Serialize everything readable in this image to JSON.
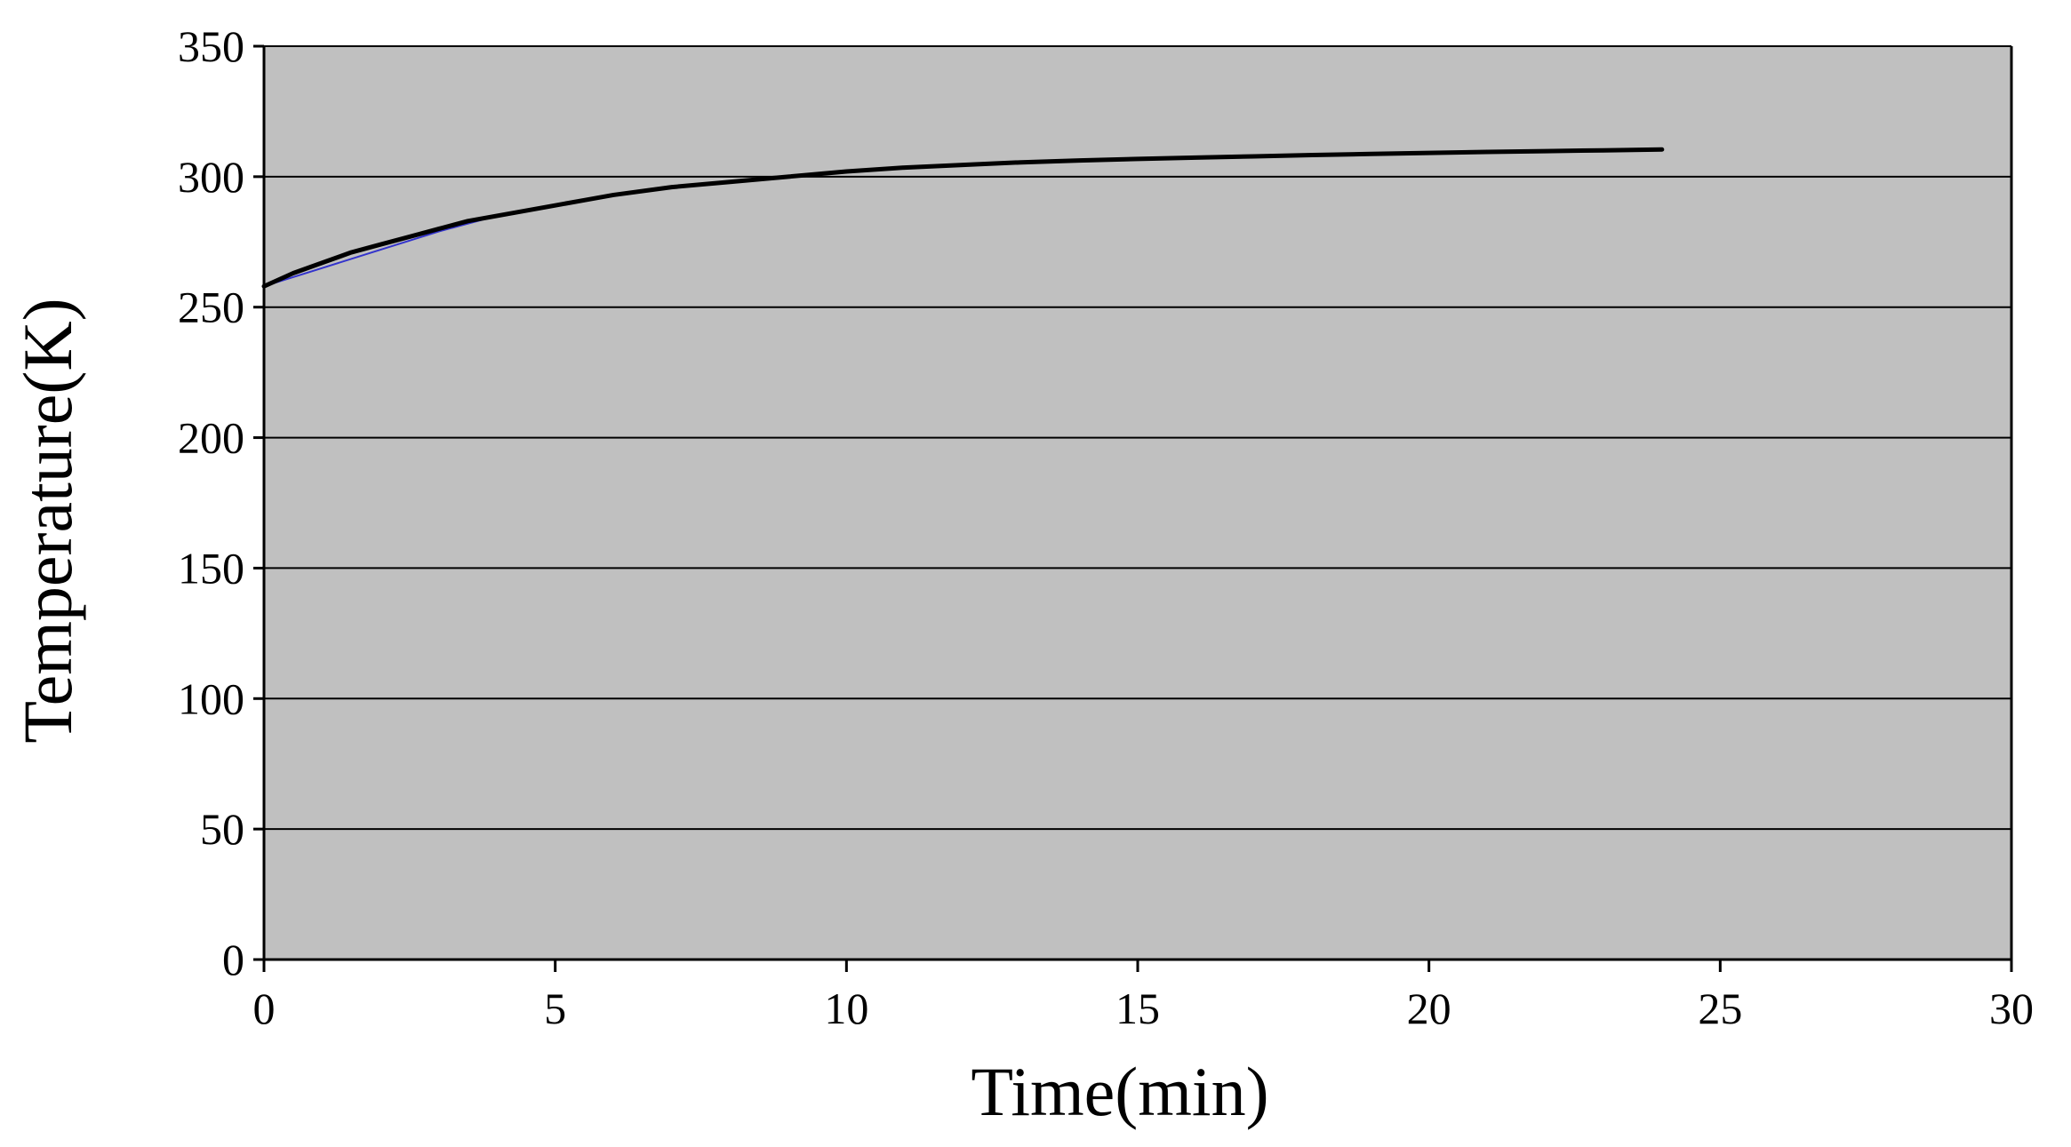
{
  "colors": {
    "plot_background": "#c0c0c0",
    "page_background": "#ffffff",
    "gridline": "#000000",
    "series_main": "#000000",
    "series_secondary": "#3333cc"
  },
  "chart_data": {
    "type": "line",
    "title": "",
    "xlabel": "Time(min)",
    "ylabel": "Temperature(K)",
    "xlim": [
      0,
      30
    ],
    "ylim": [
      0,
      350
    ],
    "xticks": [
      0,
      5,
      10,
      15,
      20,
      25,
      30
    ],
    "yticks": [
      0,
      50,
      100,
      150,
      200,
      250,
      300,
      350
    ],
    "grid": "horizontal",
    "legend": "none",
    "series": [
      {
        "color": "#000000",
        "x": [
          0,
          0.5,
          1,
          1.5,
          2,
          2.5,
          3,
          3.5,
          4,
          4.5,
          5,
          5.5,
          6,
          7,
          8,
          9,
          10,
          11,
          12,
          13,
          14,
          15,
          16,
          17,
          18,
          19,
          20,
          21,
          22,
          23,
          24
        ],
        "y": [
          258,
          263,
          267,
          271,
          274,
          277,
          280,
          283,
          285,
          287,
          289,
          291,
          293,
          296,
          298,
          300,
          302,
          303.5,
          304.5,
          305.5,
          306.2,
          306.8,
          307.3,
          307.8,
          308.3,
          308.7,
          309.1,
          309.5,
          309.8,
          310.1,
          310.4
        ]
      },
      {
        "color": "#3333cc",
        "x": [
          0,
          1,
          2,
          3,
          4,
          5
        ],
        "y": [
          258,
          265,
          272,
          279,
          285,
          289
        ]
      }
    ]
  }
}
